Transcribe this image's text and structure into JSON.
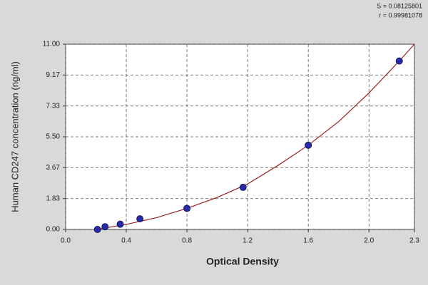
{
  "chart_data": {
    "type": "scatter",
    "x_label": "Optical Density",
    "y_label": "Human CD247 concentration (ng/ml)",
    "annotations": [
      "S = 0.08125801",
      "r = 0.99981078"
    ],
    "points": {
      "color": "#2a2aa8",
      "x": [
        0.21,
        0.26,
        0.36,
        0.49,
        0.8,
        1.17,
        1.6,
        2.2
      ],
      "values": [
        0,
        0.16,
        0.31,
        0.63,
        1.25,
        2.5,
        5,
        10
      ]
    },
    "curve": {
      "color": "#9b2020",
      "x": [
        0.2,
        0.4,
        0.6,
        0.8,
        1.0,
        1.2,
        1.4,
        1.6,
        1.8,
        2.0,
        2.2,
        2.3
      ],
      "values": [
        0,
        0.3,
        0.7,
        1.25,
        1.9,
        2.7,
        3.8,
        5.0,
        6.4,
        8.1,
        10.0,
        11.0
      ]
    },
    "xlim": [
      0,
      2.3
    ],
    "xticks": [
      {
        "value": 0,
        "label": "0.0"
      },
      0.4,
      0.8,
      1.2,
      1.6,
      {
        "value": 2,
        "label": "2.0"
      },
      2.3
    ],
    "ylim": [
      0,
      11
    ],
    "yticks": [
      {
        "value": 0,
        "label": "0.00"
      },
      1.83,
      3.67,
      {
        "value": 5.5,
        "label": "5.50"
      },
      7.33,
      9.17,
      {
        "value": 11,
        "label": "11.00"
      }
    ],
    "grid": true
  }
}
